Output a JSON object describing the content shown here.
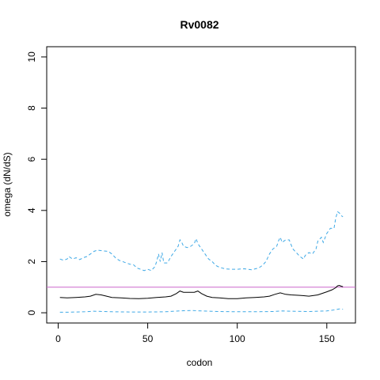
{
  "chart_data": {
    "type": "line",
    "title": "Rv0082",
    "xlabel": "codon",
    "ylabel": "omega (dN/dS)",
    "xlim": [
      -6.4,
      166
    ],
    "ylim": [
      -0.4,
      10.4
    ],
    "x_ticks": [
      0,
      50,
      100,
      150
    ],
    "y_ticks": [
      0,
      2,
      4,
      6,
      8,
      10
    ],
    "grid": false,
    "reference_line": {
      "y": 1,
      "color": "#cc66cc"
    },
    "series": [
      {
        "style": "dashed",
        "color": "#3fa9e6",
        "points": [
          [
            1,
            2.1
          ],
          [
            3,
            2.05
          ],
          [
            5,
            2.1
          ],
          [
            6,
            2.2
          ],
          [
            8,
            2.1
          ],
          [
            10,
            2.15
          ],
          [
            12,
            2.08
          ],
          [
            14,
            2.15
          ],
          [
            16,
            2.2
          ],
          [
            18,
            2.3
          ],
          [
            20,
            2.4
          ],
          [
            22,
            2.45
          ],
          [
            25,
            2.42
          ],
          [
            28,
            2.4
          ],
          [
            30,
            2.3
          ],
          [
            32,
            2.15
          ],
          [
            34,
            2.05
          ],
          [
            36,
            2.0
          ],
          [
            38,
            1.95
          ],
          [
            40,
            1.9
          ],
          [
            42,
            1.88
          ],
          [
            44,
            1.75
          ],
          [
            46,
            1.7
          ],
          [
            48,
            1.65
          ],
          [
            50,
            1.7
          ],
          [
            52,
            1.65
          ],
          [
            54,
            1.8
          ],
          [
            55,
            2.0
          ],
          [
            56,
            2.3
          ],
          [
            57,
            2.0
          ],
          [
            58,
            2.35
          ],
          [
            59,
            1.95
          ],
          [
            61,
            1.95
          ],
          [
            63,
            2.2
          ],
          [
            65,
            2.4
          ],
          [
            67,
            2.6
          ],
          [
            68,
            2.85
          ],
          [
            69,
            2.75
          ],
          [
            70,
            2.6
          ],
          [
            72,
            2.55
          ],
          [
            74,
            2.6
          ],
          [
            76,
            2.7
          ],
          [
            77,
            2.9
          ],
          [
            78,
            2.7
          ],
          [
            80,
            2.5
          ],
          [
            82,
            2.3
          ],
          [
            84,
            2.1
          ],
          [
            86,
            2.0
          ],
          [
            88,
            1.85
          ],
          [
            90,
            1.78
          ],
          [
            93,
            1.72
          ],
          [
            96,
            1.7
          ],
          [
            100,
            1.7
          ],
          [
            104,
            1.72
          ],
          [
            108,
            1.68
          ],
          [
            112,
            1.75
          ],
          [
            114,
            1.85
          ],
          [
            116,
            2.0
          ],
          [
            118,
            2.3
          ],
          [
            120,
            2.5
          ],
          [
            122,
            2.6
          ],
          [
            123,
            2.8
          ],
          [
            124,
            2.95
          ],
          [
            125,
            2.75
          ],
          [
            127,
            2.85
          ],
          [
            129,
            2.85
          ],
          [
            131,
            2.5
          ],
          [
            133,
            2.35
          ],
          [
            135,
            2.2
          ],
          [
            137,
            2.1
          ],
          [
            138,
            2.25
          ],
          [
            140,
            2.35
          ],
          [
            142,
            2.3
          ],
          [
            144,
            2.5
          ],
          [
            145,
            2.8
          ],
          [
            147,
            2.95
          ],
          [
            148,
            2.75
          ],
          [
            150,
            3.1
          ],
          [
            152,
            3.3
          ],
          [
            154,
            3.3
          ],
          [
            155,
            3.7
          ],
          [
            156,
            3.95
          ],
          [
            157,
            3.9
          ],
          [
            158,
            3.8
          ],
          [
            159,
            3.75
          ]
        ]
      },
      {
        "style": "solid",
        "color": "#000000",
        "points": [
          [
            1,
            0.6
          ],
          [
            5,
            0.58
          ],
          [
            10,
            0.6
          ],
          [
            15,
            0.62
          ],
          [
            18,
            0.65
          ],
          [
            21,
            0.72
          ],
          [
            24,
            0.7
          ],
          [
            27,
            0.65
          ],
          [
            30,
            0.6
          ],
          [
            35,
            0.58
          ],
          [
            40,
            0.56
          ],
          [
            45,
            0.55
          ],
          [
            50,
            0.57
          ],
          [
            55,
            0.6
          ],
          [
            60,
            0.62
          ],
          [
            63,
            0.65
          ],
          [
            66,
            0.75
          ],
          [
            68,
            0.85
          ],
          [
            70,
            0.8
          ],
          [
            73,
            0.8
          ],
          [
            76,
            0.8
          ],
          [
            78,
            0.85
          ],
          [
            80,
            0.75
          ],
          [
            83,
            0.65
          ],
          [
            86,
            0.6
          ],
          [
            90,
            0.58
          ],
          [
            95,
            0.55
          ],
          [
            100,
            0.55
          ],
          [
            105,
            0.58
          ],
          [
            110,
            0.6
          ],
          [
            115,
            0.62
          ],
          [
            118,
            0.65
          ],
          [
            121,
            0.72
          ],
          [
            124,
            0.78
          ],
          [
            127,
            0.72
          ],
          [
            130,
            0.7
          ],
          [
            135,
            0.68
          ],
          [
            140,
            0.65
          ],
          [
            145,
            0.7
          ],
          [
            150,
            0.82
          ],
          [
            153,
            0.9
          ],
          [
            155,
            0.98
          ],
          [
            156,
            1.05
          ],
          [
            157,
            1.07
          ],
          [
            158,
            1.04
          ],
          [
            159,
            1.02
          ]
        ]
      },
      {
        "style": "dashed",
        "color": "#3fa9e6",
        "points": [
          [
            1,
            0.02
          ],
          [
            5,
            0.02
          ],
          [
            10,
            0.03
          ],
          [
            15,
            0.04
          ],
          [
            20,
            0.06
          ],
          [
            25,
            0.05
          ],
          [
            30,
            0.04
          ],
          [
            40,
            0.03
          ],
          [
            50,
            0.03
          ],
          [
            60,
            0.04
          ],
          [
            65,
            0.06
          ],
          [
            70,
            0.08
          ],
          [
            75,
            0.09
          ],
          [
            80,
            0.07
          ],
          [
            90,
            0.05
          ],
          [
            100,
            0.04
          ],
          [
            110,
            0.04
          ],
          [
            120,
            0.05
          ],
          [
            125,
            0.07
          ],
          [
            130,
            0.06
          ],
          [
            140,
            0.05
          ],
          [
            150,
            0.07
          ],
          [
            155,
            0.12
          ],
          [
            157,
            0.15
          ],
          [
            159,
            0.14
          ]
        ]
      }
    ]
  }
}
